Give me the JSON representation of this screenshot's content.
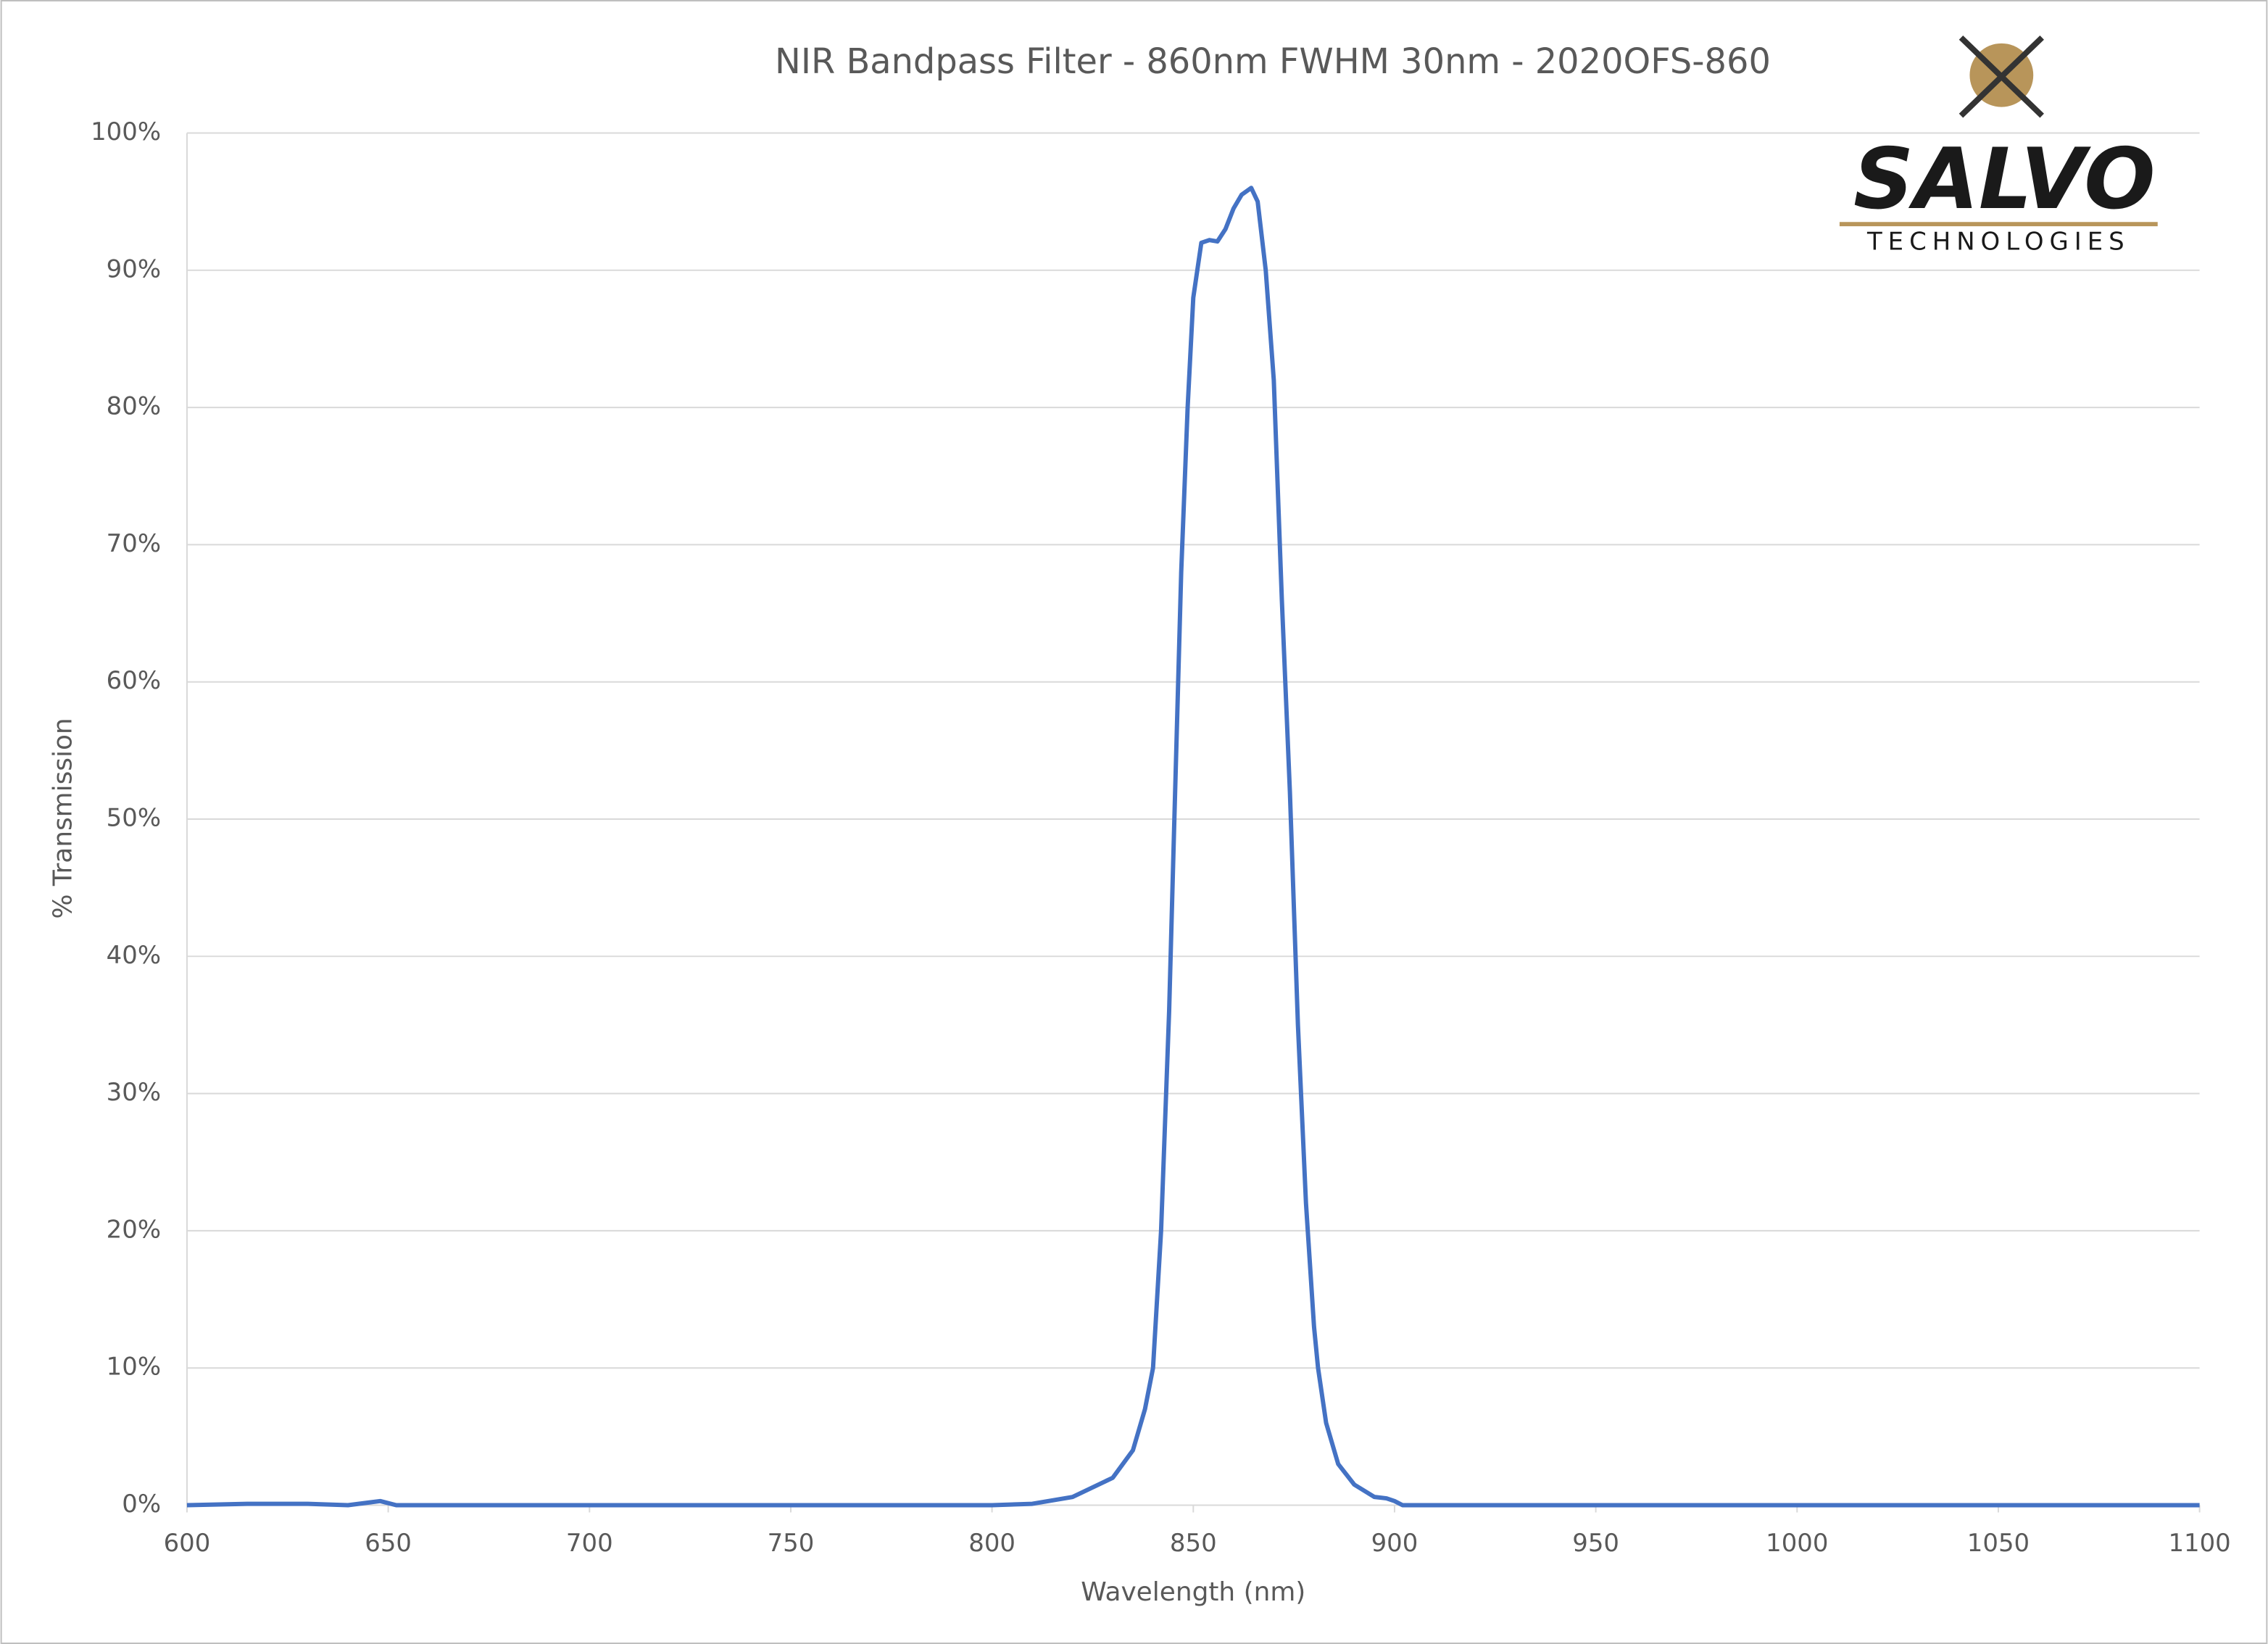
{
  "chart_data": {
    "type": "line",
    "title": "NIR Bandpass Filter - 860nm FWHM 30nm - 2020OFS-860",
    "x_label": "Wavelength (nm)",
    "y_label": "% Transmission",
    "x": [
      600,
      615,
      630,
      640,
      648,
      652,
      700,
      750,
      800,
      810,
      820,
      830,
      835,
      838,
      840,
      842,
      844,
      845.3,
      847,
      848.6,
      850,
      852,
      854,
      856,
      858,
      860,
      862,
      864.4,
      866,
      868,
      870,
      872,
      874,
      876,
      878,
      880,
      881,
      883,
      886,
      890,
      895,
      898,
      900,
      902,
      950,
      1000,
      1050,
      1100
    ],
    "series": [
      {
        "color": "#4472c4",
        "values": [
          0,
          0.1,
          0.1,
          0,
          0.3,
          0,
          0,
          0,
          0,
          0.1,
          0.6,
          2,
          4,
          7,
          10,
          20,
          36,
          50,
          68,
          80,
          88,
          92,
          92.2,
          92.1,
          93,
          94.5,
          95.5,
          96,
          95,
          90,
          82,
          66,
          52,
          35,
          22,
          13,
          10,
          6,
          3,
          1.5,
          0.6,
          0.5,
          0.3,
          0,
          0,
          0,
          0,
          0
        ]
      }
    ],
    "xlim": [
      600,
      1100
    ],
    "xticks": [
      600,
      650,
      700,
      750,
      800,
      850,
      900,
      950,
      1000,
      1050,
      1100
    ],
    "ylim": [
      0,
      100
    ],
    "yticks": [
      {
        "value": 0,
        "label": "0%"
      },
      {
        "value": 10,
        "label": "10%"
      },
      {
        "value": 20,
        "label": "20%"
      },
      {
        "value": 30,
        "label": "30%"
      },
      {
        "value": 40,
        "label": "40%"
      },
      {
        "value": 50,
        "label": "50%"
      },
      {
        "value": 60,
        "label": "60%"
      },
      {
        "value": 70,
        "label": "70%"
      },
      {
        "value": 80,
        "label": "80%"
      },
      {
        "value": 90,
        "label": "90%"
      },
      {
        "value": 100,
        "label": "100%"
      }
    ],
    "grid": true
  },
  "logo": {
    "name": "SALVO",
    "tagline": "TECHNOLOGIES"
  }
}
